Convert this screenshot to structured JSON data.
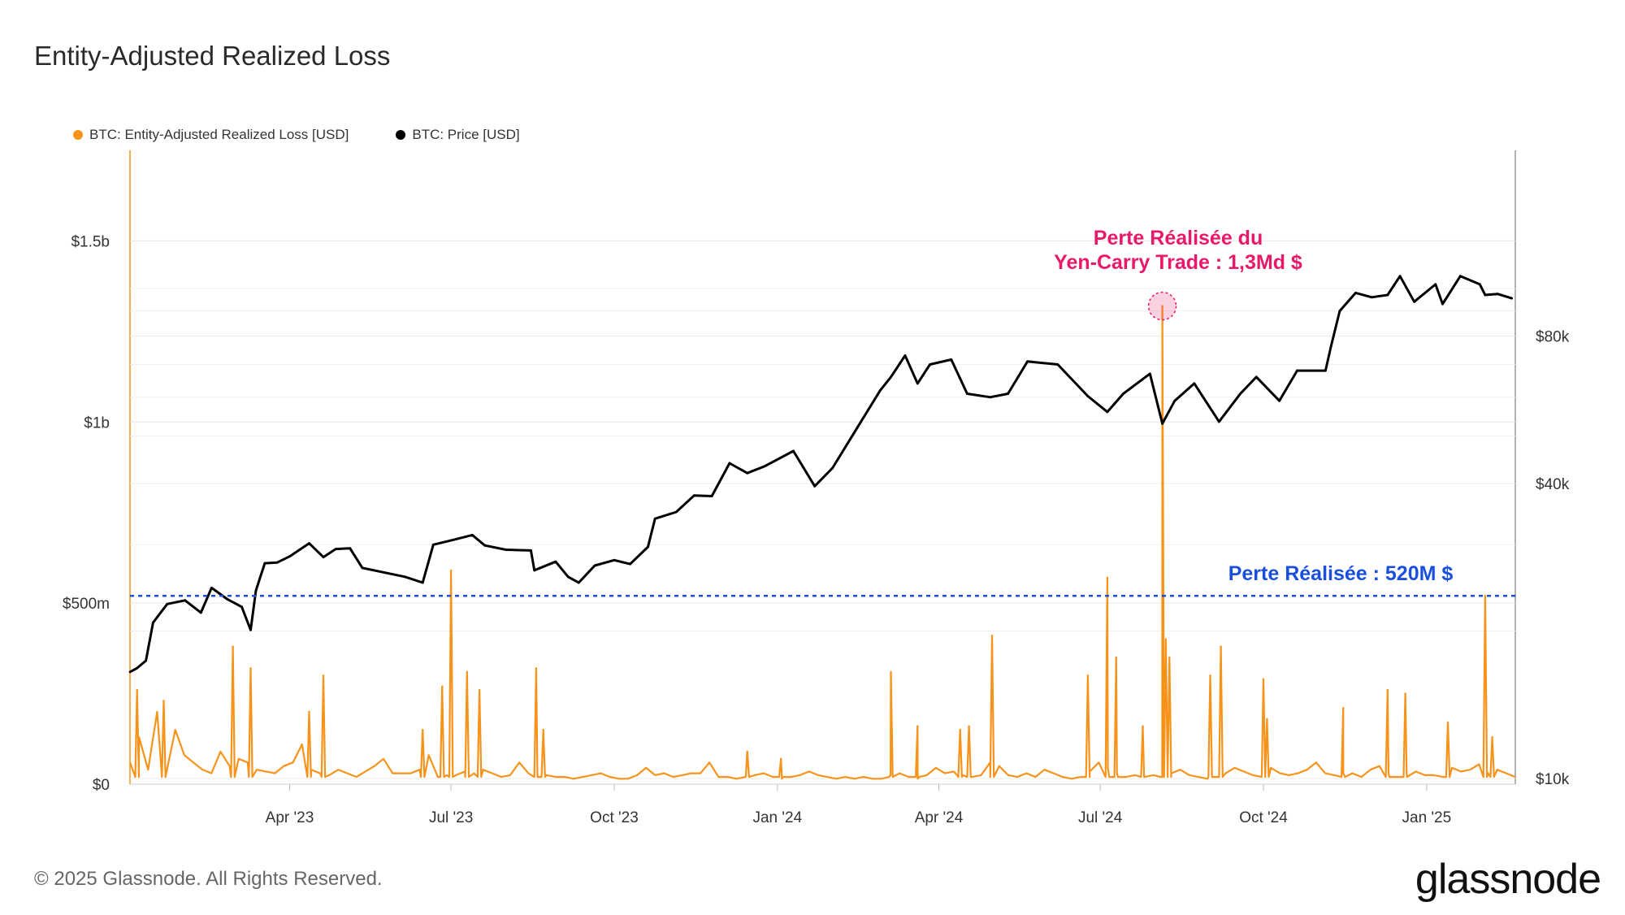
{
  "title": "Entity-Adjusted Realized Loss",
  "legend": [
    {
      "label": "BTC: Entity-Adjusted Realized Loss [USD]",
      "color": "#F7931A"
    },
    {
      "label": "BTC: Price [USD]",
      "color": "#000000"
    }
  ],
  "annotations": {
    "peak_line1": "Perte Réalisée du",
    "peak_line2": "Yen-Carry Trade : 1,3Md $",
    "peak_color": "#E8186A",
    "threshold": "Perte Réalisée : 520M $",
    "threshold_color": "#1A4FDB"
  },
  "footer": "© 2025 Glassnode. All Rights Reserved.",
  "logo": "glassnode",
  "chart_data": {
    "type": "line",
    "x_ticks": [
      "Apr '23",
      "Jul '23",
      "Oct '23",
      "Jan '24",
      "Apr '24",
      "Jul '24",
      "Oct '24",
      "Jan '25"
    ],
    "x_range": [
      "2023-01-01",
      "2025-02-20"
    ],
    "y_left": {
      "ticks": [
        "$0",
        "$500m",
        "$1b",
        "$1.5b"
      ],
      "tick_values": [
        0,
        500,
        1000,
        1500
      ],
      "unit": "million USD",
      "range": [
        0,
        1750
      ]
    },
    "y_right": {
      "ticks": [
        "$10k",
        "$40k",
        "$80k"
      ],
      "tick_values": [
        10000,
        40000,
        80000
      ],
      "scale": "log"
    },
    "threshold_value": 520,
    "series": [
      {
        "name": "BTC: Entity-Adjusted Realized Loss [USD]",
        "color": "#F7931A",
        "axis": "left",
        "baseline": [
          60,
          130,
          40,
          200,
          30,
          150,
          80,
          60,
          40,
          30,
          90,
          50,
          70,
          60,
          40,
          35,
          30,
          50,
          60,
          110,
          40,
          30,
          25,
          40,
          30,
          20,
          35,
          50,
          70,
          30,
          30,
          30,
          40,
          80,
          20,
          25,
          25,
          35,
          30,
          40,
          30,
          20,
          25,
          60,
          30,
          20,
          25,
          20,
          20,
          15,
          20,
          25,
          30,
          20,
          15,
          15,
          25,
          45,
          25,
          30,
          20,
          25,
          30,
          30,
          60,
          20,
          20,
          15,
          20,
          25,
          30,
          20,
          15,
          20,
          25,
          35,
          25,
          20,
          15,
          20,
          15,
          20,
          15,
          15,
          25,
          30,
          20,
          15,
          25,
          45,
          30,
          35,
          25,
          20,
          25,
          60,
          50,
          25,
          20,
          30,
          20,
          40,
          30,
          20,
          15,
          20,
          35,
          60,
          45,
          30,
          20,
          25,
          20,
          25,
          20,
          30,
          40,
          25,
          20,
          15,
          20,
          30,
          45,
          35,
          25,
          30,
          45,
          30,
          25,
          30,
          40,
          60,
          30,
          25,
          30,
          30,
          20,
          40,
          50,
          30,
          20,
          30,
          35,
          25,
          25,
          20,
          45,
          35,
          40,
          55,
          30,
          40,
          30,
          20
        ],
        "spikes": [
          {
            "date": "2023-01-05",
            "value": 260
          },
          {
            "date": "2023-01-20",
            "value": 230
          },
          {
            "date": "2023-02-28",
            "value": 380
          },
          {
            "date": "2023-03-10",
            "value": 320
          },
          {
            "date": "2023-04-12",
            "value": 200
          },
          {
            "date": "2023-04-20",
            "value": 300
          },
          {
            "date": "2023-06-15",
            "value": 150
          },
          {
            "date": "2023-06-26",
            "value": 270
          },
          {
            "date": "2023-07-01",
            "value": 590
          },
          {
            "date": "2023-07-10",
            "value": 310
          },
          {
            "date": "2023-07-17",
            "value": 260
          },
          {
            "date": "2023-08-18",
            "value": 320
          },
          {
            "date": "2023-08-22",
            "value": 150
          },
          {
            "date": "2023-12-15",
            "value": 90
          },
          {
            "date": "2024-01-03",
            "value": 70
          },
          {
            "date": "2024-03-05",
            "value": 310
          },
          {
            "date": "2024-03-20",
            "value": 160
          },
          {
            "date": "2024-04-13",
            "value": 150
          },
          {
            "date": "2024-04-18",
            "value": 160
          },
          {
            "date": "2024-05-01",
            "value": 410
          },
          {
            "date": "2024-06-24",
            "value": 300
          },
          {
            "date": "2024-07-05",
            "value": 570
          },
          {
            "date": "2024-07-10",
            "value": 350
          },
          {
            "date": "2024-07-25",
            "value": 160
          },
          {
            "date": "2024-08-05",
            "value": 1320
          },
          {
            "date": "2024-08-07",
            "value": 400
          },
          {
            "date": "2024-08-09",
            "value": 350
          },
          {
            "date": "2024-09-01",
            "value": 300
          },
          {
            "date": "2024-09-07",
            "value": 380
          },
          {
            "date": "2024-10-01",
            "value": 290
          },
          {
            "date": "2024-10-03",
            "value": 180
          },
          {
            "date": "2024-11-15",
            "value": 210
          },
          {
            "date": "2024-12-10",
            "value": 260
          },
          {
            "date": "2024-12-20",
            "value": 250
          },
          {
            "date": "2025-01-13",
            "value": 170
          },
          {
            "date": "2025-02-03",
            "value": 520
          },
          {
            "date": "2025-02-07",
            "value": 130
          }
        ]
      },
      {
        "name": "BTC: Price [USD]",
        "color": "#000000",
        "axis": "right",
        "points": [
          [
            "2023-01-01",
            16500
          ],
          [
            "2023-01-05",
            16800
          ],
          [
            "2023-01-10",
            17400
          ],
          [
            "2023-01-14",
            20800
          ],
          [
            "2023-01-22",
            22700
          ],
          [
            "2023-02-01",
            23100
          ],
          [
            "2023-02-10",
            21800
          ],
          [
            "2023-02-16",
            24500
          ],
          [
            "2023-02-25",
            23200
          ],
          [
            "2023-03-05",
            22400
          ],
          [
            "2023-03-10",
            20100
          ],
          [
            "2023-03-13",
            24200
          ],
          [
            "2023-03-18",
            27500
          ],
          [
            "2023-03-25",
            27600
          ],
          [
            "2023-04-01",
            28400
          ],
          [
            "2023-04-12",
            30200
          ],
          [
            "2023-04-20",
            28300
          ],
          [
            "2023-04-27",
            29400
          ],
          [
            "2023-05-05",
            29500
          ],
          [
            "2023-05-12",
            26900
          ],
          [
            "2023-05-25",
            26300
          ],
          [
            "2023-06-05",
            25800
          ],
          [
            "2023-06-15",
            25100
          ],
          [
            "2023-06-21",
            30000
          ],
          [
            "2023-07-01",
            30600
          ],
          [
            "2023-07-13",
            31400
          ],
          [
            "2023-07-20",
            29900
          ],
          [
            "2023-08-01",
            29300
          ],
          [
            "2023-08-15",
            29200
          ],
          [
            "2023-08-17",
            26600
          ],
          [
            "2023-08-29",
            27700
          ],
          [
            "2023-09-05",
            25800
          ],
          [
            "2023-09-11",
            25100
          ],
          [
            "2023-09-20",
            27200
          ],
          [
            "2023-10-01",
            27900
          ],
          [
            "2023-10-10",
            27400
          ],
          [
            "2023-10-20",
            29700
          ],
          [
            "2023-10-24",
            33900
          ],
          [
            "2023-11-05",
            35000
          ],
          [
            "2023-11-15",
            37800
          ],
          [
            "2023-11-25",
            37700
          ],
          [
            "2023-12-05",
            44000
          ],
          [
            "2023-12-15",
            42000
          ],
          [
            "2023-12-25",
            43400
          ],
          [
            "2024-01-10",
            46600
          ],
          [
            "2024-01-22",
            39500
          ],
          [
            "2024-02-01",
            43000
          ],
          [
            "2024-02-15",
            52000
          ],
          [
            "2024-02-28",
            62000
          ],
          [
            "2024-03-05",
            66000
          ],
          [
            "2024-03-13",
            73000
          ],
          [
            "2024-03-20",
            64000
          ],
          [
            "2024-03-27",
            70000
          ],
          [
            "2024-04-08",
            71600
          ],
          [
            "2024-04-17",
            61000
          ],
          [
            "2024-04-30",
            60000
          ],
          [
            "2024-05-10",
            61000
          ],
          [
            "2024-05-21",
            71000
          ],
          [
            "2024-06-07",
            70000
          ],
          [
            "2024-06-24",
            60300
          ],
          [
            "2024-07-05",
            56000
          ],
          [
            "2024-07-14",
            61000
          ],
          [
            "2024-07-29",
            67000
          ],
          [
            "2024-08-05",
            53000
          ],
          [
            "2024-08-12",
            59000
          ],
          [
            "2024-08-23",
            64000
          ],
          [
            "2024-09-06",
            53500
          ],
          [
            "2024-09-18",
            61000
          ],
          [
            "2024-09-27",
            66000
          ],
          [
            "2024-10-10",
            59000
          ],
          [
            "2024-10-20",
            68000
          ],
          [
            "2024-11-05",
            68000
          ],
          [
            "2024-11-08",
            76000
          ],
          [
            "2024-11-13",
            90000
          ],
          [
            "2024-11-22",
            98000
          ],
          [
            "2024-12-01",
            96000
          ],
          [
            "2024-12-10",
            97000
          ],
          [
            "2024-12-17",
            106000
          ],
          [
            "2024-12-25",
            94000
          ],
          [
            "2025-01-06",
            102000
          ],
          [
            "2025-01-10",
            93000
          ],
          [
            "2025-01-20",
            106000
          ],
          [
            "2025-01-31",
            102000
          ],
          [
            "2025-02-03",
            97000
          ],
          [
            "2025-02-10",
            97500
          ],
          [
            "2025-02-18",
            95500
          ]
        ]
      }
    ]
  }
}
